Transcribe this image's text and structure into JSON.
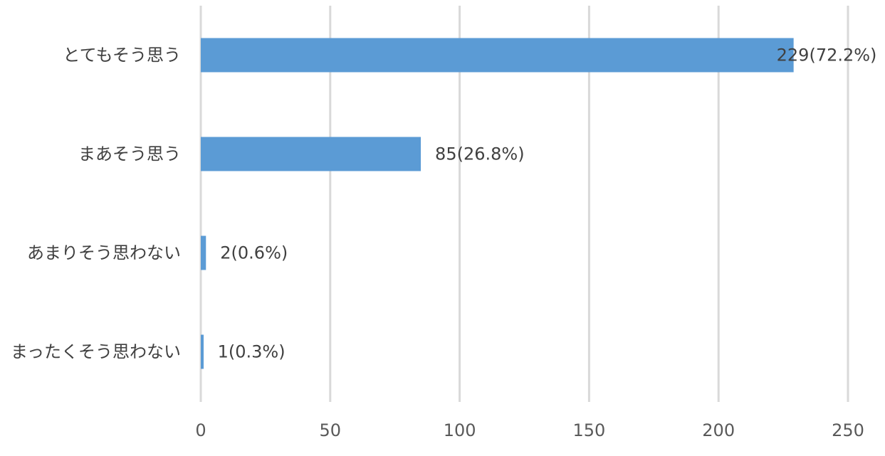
{
  "chart_data": {
    "type": "bar",
    "orientation": "horizontal",
    "categories": [
      "とてもそう思う",
      "まあそう思う",
      "あまりそう思わない",
      "まったくそう思わない"
    ],
    "values": [
      229,
      85,
      2,
      1
    ],
    "data_labels": [
      "229(72.2%)",
      "85(26.8%)",
      "2(0.6%)",
      "1(0.3%)"
    ],
    "percentages": [
      72.2,
      26.8,
      0.6,
      0.3
    ],
    "xlim": [
      0,
      250
    ],
    "xticks": [
      "0",
      "50",
      "100",
      "150",
      "200",
      "250"
    ],
    "grid": true,
    "bar_color": "#5b9bd5",
    "grid_color": "#d9d9d9",
    "title": "",
    "xlabel": "",
    "ylabel": ""
  }
}
